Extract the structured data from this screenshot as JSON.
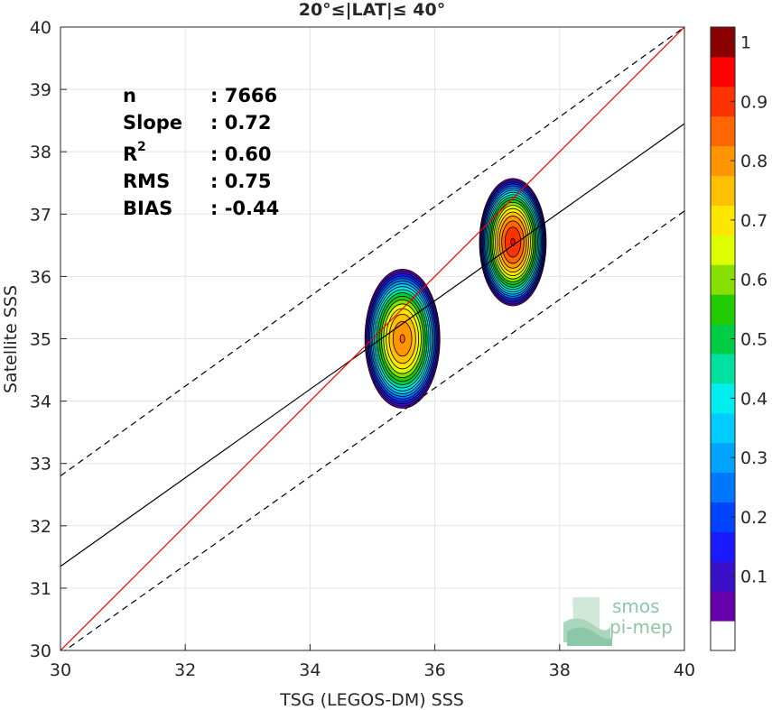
{
  "chart_data": {
    "type": "heatmap",
    "title": "20°≤|LAT|≤ 40°",
    "xlabel": "TSG (LEGOS-DM) SSS",
    "ylabel": "Satellite SSS",
    "xlim": [
      30,
      40
    ],
    "ylim": [
      30,
      40
    ],
    "x_ticks": [
      "30",
      "32",
      "34",
      "36",
      "38",
      "40"
    ],
    "y_ticks": [
      "30",
      "31",
      "32",
      "33",
      "34",
      "35",
      "36",
      "37",
      "38",
      "39",
      "40"
    ],
    "grid": true,
    "stats": [
      {
        "key": "n",
        "value": ": 7666"
      },
      {
        "key": "Slope",
        "value": ": 0.72"
      },
      {
        "key": "R",
        "sup": "2",
        "value": ": 0.60"
      },
      {
        "key": "RMS",
        "value": ": 0.75"
      },
      {
        "key": "BIAS",
        "value": ": -0.44"
      }
    ],
    "lines": {
      "identity": {
        "x": [
          30,
          40
        ],
        "y": [
          30,
          40
        ],
        "color": "#ff0000"
      },
      "fit": {
        "x": [
          30,
          40
        ],
        "y": [
          31.35,
          38.45
        ],
        "color": "#000000"
      },
      "upper_bound": {
        "x": [
          30,
          40
        ],
        "y": [
          32.8,
          40
        ],
        "color": "#000000",
        "dash": true
      },
      "lower_bound": {
        "x": [
          30,
          40
        ],
        "y": [
          29.95,
          37.05
        ],
        "color": "#000000",
        "dash": true
      }
    },
    "density_clusters": [
      {
        "name": "cluster-a",
        "cx": 35.48,
        "cy": 35.0,
        "rx": 0.62,
        "ry": 1.15,
        "peak": 0.85
      },
      {
        "name": "cluster-b",
        "cx": 37.25,
        "cy": 36.55,
        "rx": 0.55,
        "ry": 1.05,
        "peak": 0.95
      }
    ],
    "colorbar": {
      "levels": [
        0,
        0.05,
        0.1,
        0.15,
        0.2,
        0.25,
        0.3,
        0.35,
        0.4,
        0.45,
        0.5,
        0.55,
        0.6,
        0.65,
        0.7,
        0.75,
        0.8,
        0.85,
        0.9,
        0.95,
        1
      ],
      "tick_labels": [
        "0.1",
        "0.2",
        "0.3",
        "0.4",
        "0.5",
        "0.6",
        "0.7",
        "0.8",
        "0.9",
        "1"
      ],
      "tick_values": [
        0.1,
        0.2,
        0.3,
        0.4,
        0.5,
        0.6,
        0.7,
        0.8,
        0.9,
        1
      ],
      "colors": [
        "#ffffff",
        "#6600aa",
        "#3a10c8",
        "#1a1aff",
        "#0044ff",
        "#0077ff",
        "#00a3ff",
        "#00ccff",
        "#00eeee",
        "#00e0a0",
        "#00cc44",
        "#22cc00",
        "#88e000",
        "#ddff00",
        "#ffe600",
        "#ffc000",
        "#ff9500",
        "#ff6600",
        "#ff3300",
        "#ff0000",
        "#8b0000"
      ]
    }
  },
  "logo": {
    "line1": "smos",
    "line2": "pi-mep"
  }
}
